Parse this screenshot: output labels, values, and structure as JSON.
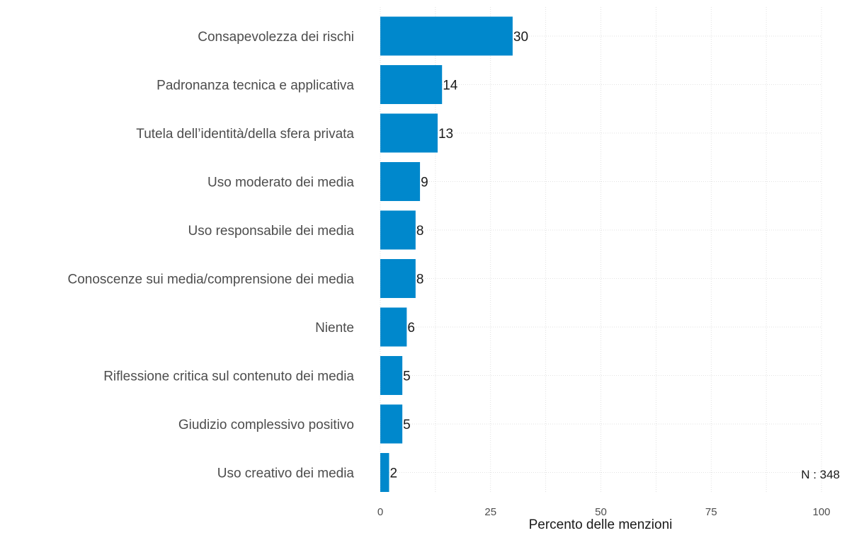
{
  "chart_data": {
    "type": "bar",
    "orientation": "horizontal",
    "categories": [
      "Consapevolezza dei rischi",
      "Padronanza tecnica e applicativa",
      "Tutela dell’identità/della sfera privata",
      "Uso moderato dei media",
      "Uso responsabile dei media",
      "Conoscenze sui media/comprensione dei media",
      "Niente",
      "Riflessione critica sul contenuto dei media",
      "Giudizio complessivo positivo",
      "Uso creativo dei media"
    ],
    "values": [
      30,
      14,
      13,
      9,
      8,
      8,
      6,
      5,
      5,
      2
    ],
    "data_labels": [
      "30",
      "14",
      "13",
      "9",
      "8",
      "8",
      "6",
      "5",
      "5",
      "2"
    ],
    "xlabel": "Percento delle menzioni",
    "ylabel": "",
    "xlim": [
      0,
      100
    ],
    "xticks": [
      0,
      25,
      50,
      75,
      100
    ],
    "grid": true,
    "bar_color": "#0088cc",
    "note": "N : 348"
  }
}
